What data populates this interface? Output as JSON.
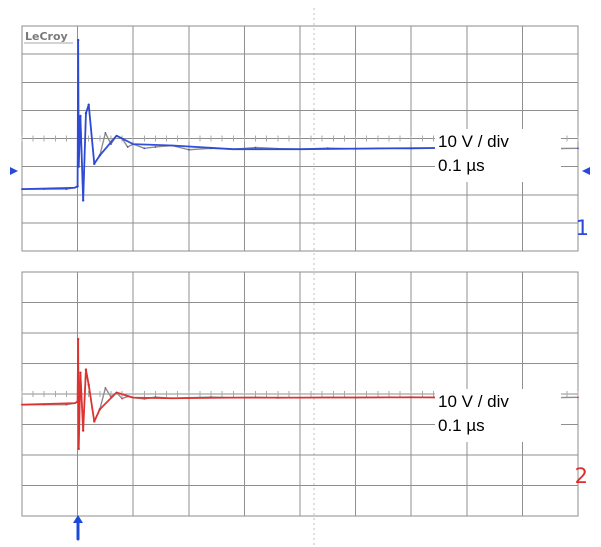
{
  "brand": {
    "label": "LeCroy"
  },
  "theme": {
    "grid_color": "#8f8f8f",
    "ch1_color": "#2947d8",
    "ch2_color": "#df2d2d",
    "trace_color": "#8d8d8d",
    "trigger_color": "#1e49d8"
  },
  "chart_data": [
    {
      "type": "line",
      "channel_label": "1",
      "annotation": {
        "line1": "10 V / div",
        "line2": "0.1 µs"
      },
      "xlim": [
        0,
        1.0
      ],
      "ylim": [
        -4,
        4
      ],
      "grid": true,
      "series": [
        {
          "x": [
            0,
            0.04,
            0.08,
            0.095,
            0.1,
            0.101,
            0.102,
            0.105,
            0.11,
            0.115,
            0.12,
            0.13,
            0.14,
            0.15,
            0.16,
            0.17,
            0.18,
            0.19,
            0.2,
            0.22,
            0.24,
            0.27,
            0.3,
            0.34,
            0.38,
            0.42,
            0.46,
            0.5,
            0.55,
            0.6,
            0.65,
            0.7,
            0.75,
            0.8,
            0.85,
            0.9,
            0.95,
            1.0
          ],
          "y": [
            -1.8,
            -1.8,
            -1.8,
            -1.75,
            -1.7,
            3.5,
            -1.0,
            0.8,
            -2.2,
            0.9,
            1.2,
            -0.9,
            -0.6,
            0.2,
            -0.2,
            0.1,
            0.0,
            -0.3,
            -0.2,
            -0.35,
            -0.3,
            -0.25,
            -0.4,
            -0.35,
            -0.38,
            -0.32,
            -0.36,
            -0.38,
            -0.34,
            -0.37,
            -0.35,
            -0.36,
            -0.34,
            -0.33,
            -0.35,
            -0.34,
            -0.36,
            -0.35
          ]
        }
      ],
      "annotations": [
        "left-marker",
        "right-marker"
      ]
    },
    {
      "type": "line",
      "channel_label": "2",
      "annotation": {
        "line1": "10 V / div",
        "line2": "0.1 µs"
      },
      "xlim": [
        0,
        1.0
      ],
      "ylim": [
        -4,
        4
      ],
      "grid": true,
      "series": [
        {
          "x": [
            0,
            0.04,
            0.08,
            0.095,
            0.1,
            0.101,
            0.102,
            0.105,
            0.11,
            0.115,
            0.12,
            0.13,
            0.14,
            0.15,
            0.16,
            0.17,
            0.18,
            0.19,
            0.2,
            0.22,
            0.24,
            0.27,
            0.3,
            0.34,
            0.38,
            0.42,
            0.46,
            0.5,
            0.55,
            0.6,
            0.65,
            0.7,
            0.75,
            0.8,
            0.85,
            0.9,
            0.95,
            1.0
          ],
          "y": [
            -0.35,
            -0.35,
            -0.35,
            -0.3,
            -0.25,
            1.8,
            -1.8,
            0.7,
            -1.2,
            0.8,
            0.3,
            -0.9,
            -0.5,
            0.2,
            -0.1,
            0.05,
            -0.15,
            -0.08,
            -0.12,
            -0.16,
            -0.1,
            -0.14,
            -0.12,
            -0.1,
            -0.12,
            -0.11,
            -0.13,
            -0.12,
            -0.11,
            -0.12,
            -0.11,
            -0.1,
            -0.12,
            -0.11,
            -0.12,
            -0.11,
            -0.12,
            -0.11
          ]
        }
      ],
      "annotations": [
        "trigger-marker"
      ]
    }
  ]
}
